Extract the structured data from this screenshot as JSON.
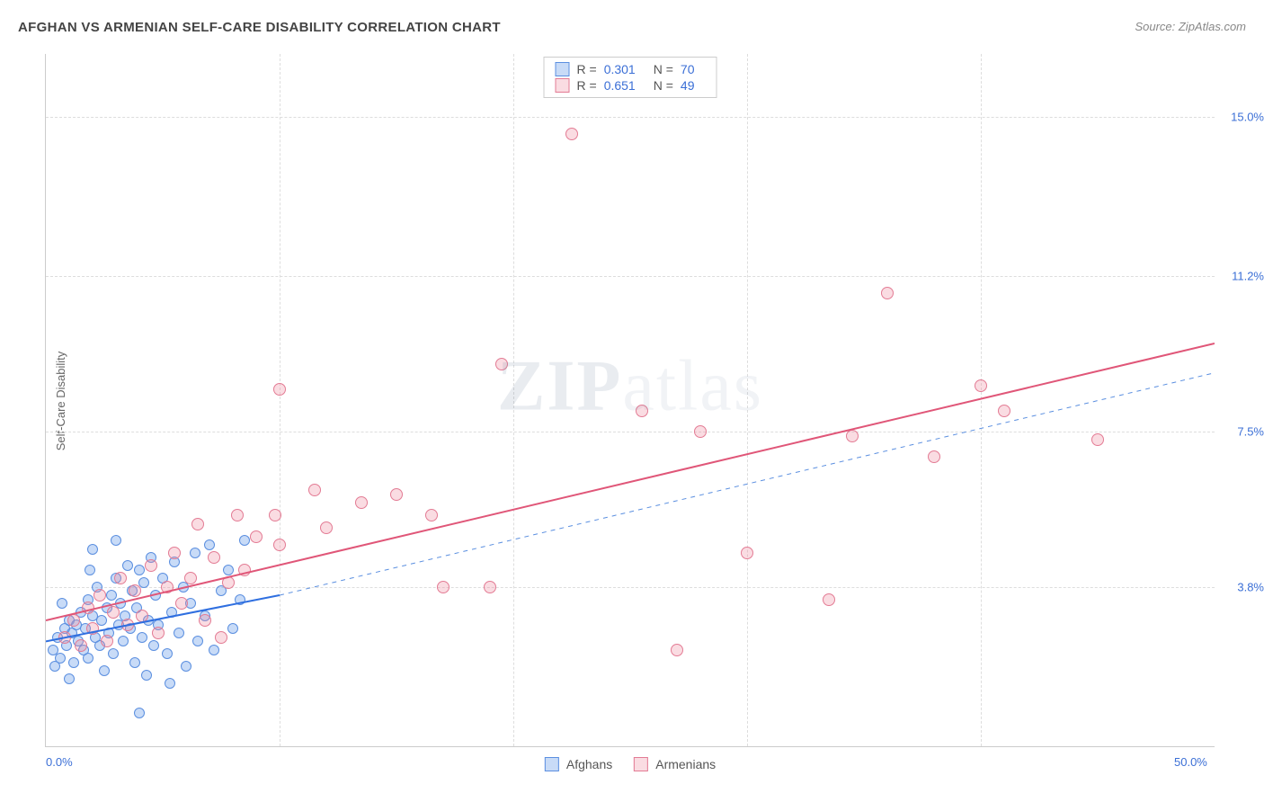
{
  "title": "AFGHAN VS ARMENIAN SELF-CARE DISABILITY CORRELATION CHART",
  "source": "Source: ZipAtlas.com",
  "ylabel": "Self-Care Disability",
  "watermark_bold": "ZIP",
  "watermark_rest": "atlas",
  "chart": {
    "type": "scatter",
    "xlim": [
      0.0,
      50.0
    ],
    "ylim": [
      0.0,
      16.5
    ],
    "xticks": [
      {
        "pos": 0.0,
        "label": "0.0%"
      },
      {
        "pos": 50.0,
        "label": "50.0%"
      }
    ],
    "yticks": [
      {
        "pos": 3.8,
        "label": "3.8%"
      },
      {
        "pos": 7.5,
        "label": "7.5%"
      },
      {
        "pos": 11.2,
        "label": "11.2%"
      },
      {
        "pos": 15.0,
        "label": "15.0%"
      }
    ],
    "grid_color": "#dddddd",
    "background_color": "#ffffff",
    "series": [
      {
        "name": "Afghans",
        "label": "Afghans",
        "fill_color": "rgba(96,152,232,0.35)",
        "stroke_color": "#5b8fe0",
        "marker_size": 12,
        "R": "0.301",
        "N": "70",
        "trend": {
          "x1": 0.0,
          "y1": 2.5,
          "x2": 10.0,
          "y2": 3.6,
          "extend_x2": 50.0,
          "extend_y2": 8.9,
          "solid_color": "#2f6fe0",
          "solid_width": 2,
          "dash_color": "#5b8fe0",
          "dash_width": 1,
          "dash_pattern": "5,5"
        },
        "points": [
          [
            0.3,
            2.3
          ],
          [
            0.5,
            2.6
          ],
          [
            0.6,
            2.1
          ],
          [
            0.8,
            2.8
          ],
          [
            0.9,
            2.4
          ],
          [
            1.0,
            3.0
          ],
          [
            1.1,
            2.7
          ],
          [
            1.2,
            2.0
          ],
          [
            1.3,
            2.9
          ],
          [
            1.4,
            2.5
          ],
          [
            1.5,
            3.2
          ],
          [
            1.6,
            2.3
          ],
          [
            1.7,
            2.8
          ],
          [
            1.8,
            3.5
          ],
          [
            1.8,
            2.1
          ],
          [
            2.0,
            3.1
          ],
          [
            2.1,
            2.6
          ],
          [
            2.2,
            3.8
          ],
          [
            2.3,
            2.4
          ],
          [
            2.4,
            3.0
          ],
          [
            2.5,
            1.8
          ],
          [
            2.6,
            3.3
          ],
          [
            2.7,
            2.7
          ],
          [
            2.8,
            3.6
          ],
          [
            2.9,
            2.2
          ],
          [
            3.0,
            4.0
          ],
          [
            3.1,
            2.9
          ],
          [
            3.2,
            3.4
          ],
          [
            3.3,
            2.5
          ],
          [
            3.4,
            3.1
          ],
          [
            3.5,
            4.3
          ],
          [
            3.6,
            2.8
          ],
          [
            3.7,
            3.7
          ],
          [
            3.8,
            2.0
          ],
          [
            3.9,
            3.3
          ],
          [
            4.0,
            4.2
          ],
          [
            4.1,
            2.6
          ],
          [
            4.2,
            3.9
          ],
          [
            4.3,
            1.7
          ],
          [
            4.4,
            3.0
          ],
          [
            4.5,
            4.5
          ],
          [
            4.6,
            2.4
          ],
          [
            4.7,
            3.6
          ],
          [
            4.8,
            2.9
          ],
          [
            5.0,
            4.0
          ],
          [
            5.2,
            2.2
          ],
          [
            5.3,
            1.5
          ],
          [
            5.4,
            3.2
          ],
          [
            5.5,
            4.4
          ],
          [
            5.7,
            2.7
          ],
          [
            5.9,
            3.8
          ],
          [
            6.0,
            1.9
          ],
          [
            6.2,
            3.4
          ],
          [
            6.4,
            4.6
          ],
          [
            6.5,
            2.5
          ],
          [
            6.8,
            3.1
          ],
          [
            7.0,
            4.8
          ],
          [
            7.2,
            2.3
          ],
          [
            7.5,
            3.7
          ],
          [
            7.8,
            4.2
          ],
          [
            8.0,
            2.8
          ],
          [
            8.3,
            3.5
          ],
          [
            8.5,
            4.9
          ],
          [
            4.0,
            0.8
          ],
          [
            1.0,
            1.6
          ],
          [
            2.0,
            4.7
          ],
          [
            3.0,
            4.9
          ],
          [
            0.7,
            3.4
          ],
          [
            0.4,
            1.9
          ],
          [
            1.9,
            4.2
          ]
        ]
      },
      {
        "name": "Armenians",
        "label": "Armenians",
        "fill_color": "rgba(240,140,160,0.30)",
        "stroke_color": "#e37b94",
        "marker_size": 14,
        "R": "0.651",
        "N": "49",
        "trend": {
          "x1": 0.0,
          "y1": 3.0,
          "x2": 50.0,
          "y2": 9.6,
          "solid_color": "#e05678",
          "solid_width": 2
        },
        "points": [
          [
            0.8,
            2.6
          ],
          [
            1.2,
            3.0
          ],
          [
            1.5,
            2.4
          ],
          [
            1.8,
            3.3
          ],
          [
            2.0,
            2.8
          ],
          [
            2.3,
            3.6
          ],
          [
            2.6,
            2.5
          ],
          [
            2.9,
            3.2
          ],
          [
            3.2,
            4.0
          ],
          [
            3.5,
            2.9
          ],
          [
            3.8,
            3.7
          ],
          [
            4.1,
            3.1
          ],
          [
            4.5,
            4.3
          ],
          [
            4.8,
            2.7
          ],
          [
            5.2,
            3.8
          ],
          [
            5.5,
            4.6
          ],
          [
            5.8,
            3.4
          ],
          [
            6.2,
            4.0
          ],
          [
            6.5,
            5.3
          ],
          [
            6.8,
            3.0
          ],
          [
            7.2,
            4.5
          ],
          [
            7.5,
            2.6
          ],
          [
            7.8,
            3.9
          ],
          [
            8.2,
            5.5
          ],
          [
            8.5,
            4.2
          ],
          [
            9.0,
            5.0
          ],
          [
            9.8,
            5.5
          ],
          [
            10.0,
            4.8
          ],
          [
            10.0,
            8.5
          ],
          [
            11.5,
            6.1
          ],
          [
            12.0,
            5.2
          ],
          [
            13.5,
            5.8
          ],
          [
            15.0,
            6.0
          ],
          [
            16.5,
            5.5
          ],
          [
            17.0,
            3.8
          ],
          [
            19.0,
            3.8
          ],
          [
            19.5,
            9.1
          ],
          [
            22.5,
            14.6
          ],
          [
            25.5,
            8.0
          ],
          [
            28.0,
            7.5
          ],
          [
            27.0,
            2.3
          ],
          [
            30.0,
            4.6
          ],
          [
            33.5,
            3.5
          ],
          [
            34.5,
            7.4
          ],
          [
            36.0,
            10.8
          ],
          [
            38.0,
            6.9
          ],
          [
            40.0,
            8.6
          ],
          [
            41.0,
            8.0
          ],
          [
            45.0,
            7.3
          ]
        ]
      }
    ]
  },
  "legend_top": {
    "R_label": "R =",
    "N_label": "N ="
  }
}
